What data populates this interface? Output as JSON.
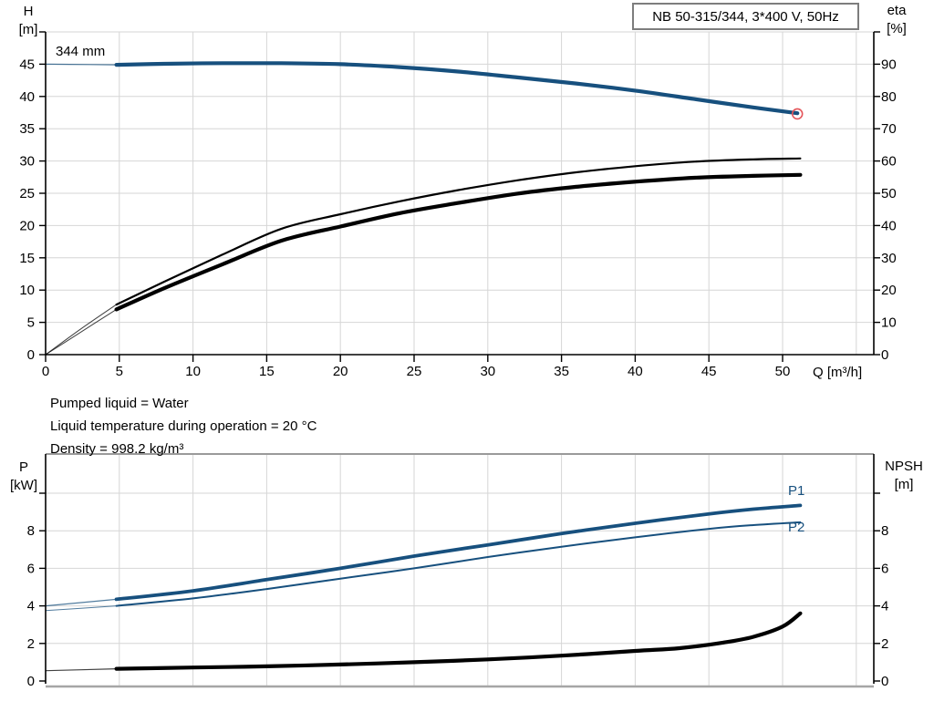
{
  "colors": {
    "blue": "#17507e",
    "black": "#000000",
    "grid": "#d6d6d6",
    "axis": "#000000",
    "duty_red": "#e4555a",
    "border_gray": "#a6a6a6"
  },
  "top_chart": {
    "title": "NB 50-315/344, 3*400 V, 50Hz",
    "impeller_label": "344 mm",
    "x_axis_label": "Q [m³/h]",
    "left_axis": {
      "line1": "H",
      "line2": "[m]"
    },
    "right_axis": {
      "line1": "eta",
      "line2": "[%]"
    }
  },
  "info_lines": [
    "Pumped liquid = Water",
    "Liquid temperature during operation = 20 °C",
    "Density = 998.2 kg/m³"
  ],
  "bottom_chart": {
    "left_axis": {
      "line1": "P",
      "line2": "[kW]"
    },
    "right_axis": {
      "line1": "NPSH",
      "line2": "[m]"
    },
    "p1_label": "P1",
    "p2_label": "P2"
  },
  "chart_data": [
    {
      "type": "line",
      "title": "NB 50-315/344, 3*400 V, 50Hz",
      "xlabel": "Q [m³/h]",
      "ylabel_left": "H [m]",
      "ylabel_right": "eta [%]",
      "x_range": [
        0,
        56.2
      ],
      "y_left_range": [
        0,
        50
      ],
      "y_right_range": [
        0,
        100
      ],
      "grid": true,
      "x_ticks": [
        0,
        5,
        10,
        15,
        20,
        25,
        30,
        35,
        40,
        45,
        50
      ],
      "y_left_ticks": [
        0,
        5,
        10,
        15,
        20,
        25,
        30,
        35,
        40,
        45
      ],
      "y_right_ticks": [
        0,
        10,
        20,
        30,
        40,
        50,
        60,
        70,
        80,
        90
      ],
      "series": [
        {
          "name": "head-curve",
          "label": "344 mm",
          "axis": "left",
          "color": "blue",
          "width": 4.2,
          "thin_width": 1.2,
          "thin_until": 4.8,
          "points": [
            [
              0,
              45
            ],
            [
              3,
              44.95
            ],
            [
              4.8,
              44.9
            ],
            [
              8,
              45.05
            ],
            [
              12,
              45.15
            ],
            [
              16,
              45.15
            ],
            [
              20,
              45.0
            ],
            [
              24,
              44.55
            ],
            [
              28,
              43.85
            ],
            [
              32,
              42.95
            ],
            [
              36,
              42.0
            ],
            [
              40,
              40.9
            ],
            [
              44,
              39.6
            ],
            [
              48,
              38.3
            ],
            [
              51,
              37.4
            ]
          ]
        },
        {
          "name": "efficiency-pump-curve",
          "axis": "right",
          "color": "black",
          "width": 2.2,
          "thin_width": 1,
          "thin_until": 4.8,
          "points": [
            [
              0,
              0
            ],
            [
              2.4,
              8
            ],
            [
              4.8,
              15.5
            ],
            [
              8,
              22.5
            ],
            [
              12,
              31
            ],
            [
              16,
              39
            ],
            [
              20,
              43.5
            ],
            [
              24,
              47.5
            ],
            [
              28,
              51
            ],
            [
              32,
              54
            ],
            [
              36,
              56.5
            ],
            [
              40,
              58.4
            ],
            [
              44,
              59.8
            ],
            [
              48,
              60.5
            ],
            [
              51.2,
              60.8
            ]
          ]
        },
        {
          "name": "efficiency-pump-motor-curve",
          "axis": "right",
          "color": "black",
          "width": 4.2,
          "thin_width": 1,
          "thin_until": 4.8,
          "points": [
            [
              0,
              0
            ],
            [
              2.4,
              7
            ],
            [
              4.8,
              14
            ],
            [
              8,
              20.5
            ],
            [
              12,
              28
            ],
            [
              16,
              35.3
            ],
            [
              20,
              39.7
            ],
            [
              24,
              43.8
            ],
            [
              28,
              47
            ],
            [
              32,
              49.9
            ],
            [
              36,
              52
            ],
            [
              40,
              53.6
            ],
            [
              44,
              54.8
            ],
            [
              48,
              55.4
            ],
            [
              51.2,
              55.7
            ]
          ]
        }
      ],
      "duty_point": {
        "q": 51,
        "h": 37.3
      }
    },
    {
      "type": "line",
      "xlabel": "",
      "ylabel_left": "P [kW]",
      "ylabel_right": "NPSH [m]",
      "x_range": [
        0,
        56.2
      ],
      "y_left_range": [
        0,
        12.1
      ],
      "y_right_range": [
        0,
        12.1
      ],
      "grid": true,
      "x_ticks": [],
      "y_left_ticks": [
        0,
        2,
        4,
        6,
        8
      ],
      "y_right_ticks": [
        0,
        2,
        4,
        6,
        8
      ],
      "series": [
        {
          "name": "p1-power-curve",
          "label": "P1",
          "axis": "left",
          "color": "blue",
          "width": 3.8,
          "thin_width": 1.2,
          "thin_until": 4.8,
          "points": [
            [
              0,
              4.0
            ],
            [
              4.8,
              4.35
            ],
            [
              10,
              4.8
            ],
            [
              15,
              5.4
            ],
            [
              20,
              6.0
            ],
            [
              25,
              6.65
            ],
            [
              30,
              7.25
            ],
            [
              35,
              7.85
            ],
            [
              40,
              8.4
            ],
            [
              45,
              8.9
            ],
            [
              48,
              9.15
            ],
            [
              51.2,
              9.35
            ]
          ]
        },
        {
          "name": "p2-power-curve",
          "label": "P2",
          "axis": "left",
          "color": "blue",
          "width": 2,
          "thin_width": 1,
          "thin_until": 4.8,
          "points": [
            [
              0,
              3.75
            ],
            [
              4.8,
              4.0
            ],
            [
              10,
              4.4
            ],
            [
              15,
              4.9
            ],
            [
              20,
              5.45
            ],
            [
              25,
              6.0
            ],
            [
              30,
              6.6
            ],
            [
              35,
              7.15
            ],
            [
              40,
              7.65
            ],
            [
              45,
              8.1
            ],
            [
              48,
              8.3
            ],
            [
              51.2,
              8.45
            ]
          ]
        },
        {
          "name": "npsh-curve",
          "axis": "right",
          "color": "black",
          "width": 4.2,
          "thin_width": 1.2,
          "thin_until": 4.8,
          "points": [
            [
              0,
              0.55
            ],
            [
              4.8,
              0.65
            ],
            [
              10,
              0.72
            ],
            [
              15,
              0.78
            ],
            [
              20,
              0.88
            ],
            [
              25,
              1.0
            ],
            [
              30,
              1.15
            ],
            [
              35,
              1.35
            ],
            [
              40,
              1.6
            ],
            [
              43,
              1.75
            ],
            [
              46,
              2.05
            ],
            [
              48,
              2.35
            ],
            [
              50,
              2.9
            ],
            [
              51.2,
              3.6
            ]
          ]
        }
      ]
    }
  ]
}
